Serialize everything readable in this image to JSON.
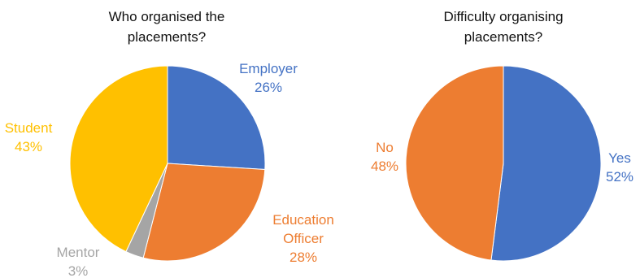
{
  "chart_data": [
    {
      "type": "pie",
      "title": [
        "Who organised the",
        "placements?"
      ],
      "slices": [
        {
          "label": [
            "Employer"
          ],
          "percent_label": "26%",
          "value": 26,
          "color": "#4472C4",
          "label_color": "#4472C4"
        },
        {
          "label": [
            "Education",
            "Officer"
          ],
          "percent_label": "28%",
          "value": 28,
          "color": "#ED7D31",
          "label_color": "#ED7D31"
        },
        {
          "label": [
            "Mentor"
          ],
          "percent_label": "3%",
          "value": 3,
          "color": "#A5A5A5",
          "label_color": "#A5A5A5"
        },
        {
          "label": [
            "Student"
          ],
          "percent_label": "43%",
          "value": 43,
          "color": "#FFC000",
          "label_color": "#FFC000"
        }
      ]
    },
    {
      "type": "pie",
      "title": [
        "Difficulty organising",
        "placements?"
      ],
      "slices": [
        {
          "label": [
            "Yes"
          ],
          "percent_label": "52%",
          "value": 52,
          "color": "#4472C4",
          "label_color": "#4472C4"
        },
        {
          "label": [
            "No"
          ],
          "percent_label": "48%",
          "value": 48,
          "color": "#ED7D31",
          "label_color": "#ED7D31"
        }
      ]
    }
  ]
}
